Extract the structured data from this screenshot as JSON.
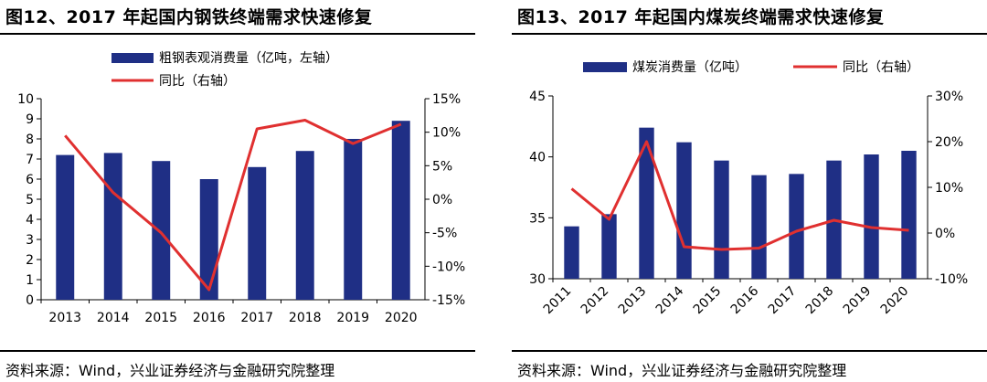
{
  "charts": [
    {
      "id": "left",
      "title": "图12、2017 年起国内钢铁终端需求快速修复",
      "source": "资料来源：Wind，兴业证券经济与金融研究院整理"
    },
    {
      "id": "right",
      "title": "图13、2017 年起国内煤炭终端需求快速修复",
      "source": "资料来源：Wind，兴业证券经济与金融研究院整理"
    }
  ],
  "colors": {
    "bar": "#1f2f85",
    "line": "#e03030"
  },
  "chart_data": [
    {
      "type": "bar",
      "categories": [
        "2013",
        "2014",
        "2015",
        "2016",
        "2017",
        "2018",
        "2019",
        "2020"
      ],
      "series": [
        {
          "name": "粗钢表观消费量（亿吨，左轴）",
          "type": "bar",
          "axis": "left",
          "values": [
            7.2,
            7.3,
            6.9,
            6.0,
            6.6,
            7.4,
            8.0,
            8.9
          ]
        },
        {
          "name": "同比（右轴）",
          "type": "line",
          "axis": "right",
          "values": [
            9.5,
            1.0,
            -5.0,
            -13.5,
            10.5,
            11.8,
            8.3,
            11.2
          ]
        }
      ],
      "ylim_left": [
        0,
        10
      ],
      "yticks_left": [
        "0",
        "1",
        "2",
        "3",
        "4",
        "5",
        "6",
        "7",
        "8",
        "9",
        "10"
      ],
      "ylim_right": [
        -15,
        15
      ],
      "yticks_right": [
        "-15%",
        "-10%",
        "-5%",
        "0%",
        "5%",
        "10%",
        "15%"
      ],
      "legend_position": "top-left",
      "grid": false
    },
    {
      "type": "bar",
      "categories": [
        "2011",
        "2012",
        "2013",
        "2014",
        "2015",
        "2016",
        "2017",
        "2018",
        "2019",
        "2020"
      ],
      "series": [
        {
          "name": "煤炭消费量（亿吨）",
          "type": "bar",
          "axis": "left",
          "values": [
            34.3,
            35.3,
            42.4,
            41.2,
            39.7,
            38.5,
            38.6,
            39.7,
            40.2,
            40.5
          ]
        },
        {
          "name": "同比（右轴）",
          "type": "line",
          "axis": "right",
          "values": [
            9.7,
            3.0,
            20.0,
            -3.0,
            -3.6,
            -3.3,
            0.4,
            2.8,
            1.2,
            0.6
          ]
        }
      ],
      "ylim_left": [
        30,
        45
      ],
      "yticks_left": [
        "30",
        "35",
        "40",
        "45"
      ],
      "ylim_right": [
        -10,
        30
      ],
      "yticks_right": [
        "-10%",
        "0%",
        "10%",
        "20%",
        "30%"
      ],
      "legend_position": "top",
      "grid": false
    }
  ]
}
